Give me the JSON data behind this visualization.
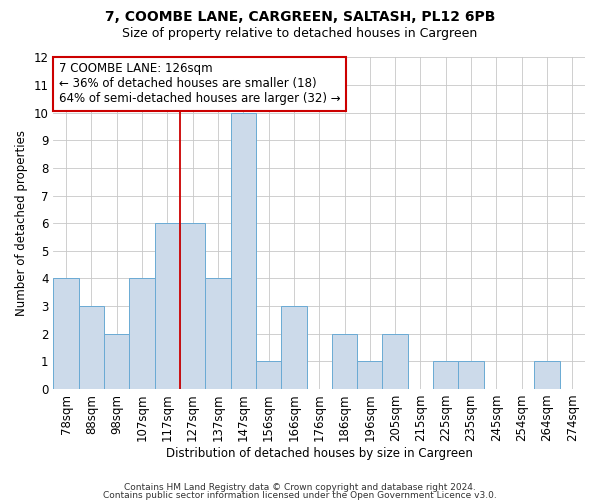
{
  "title1": "7, COOMBE LANE, CARGREEN, SALTASH, PL12 6PB",
  "title2": "Size of property relative to detached houses in Cargreen",
  "xlabel": "Distribution of detached houses by size in Cargreen",
  "ylabel": "Number of detached properties",
  "categories": [
    "78sqm",
    "88sqm",
    "98sqm",
    "107sqm",
    "117sqm",
    "127sqm",
    "137sqm",
    "147sqm",
    "156sqm",
    "166sqm",
    "176sqm",
    "186sqm",
    "196sqm",
    "205sqm",
    "215sqm",
    "225sqm",
    "235sqm",
    "245sqm",
    "254sqm",
    "264sqm",
    "274sqm"
  ],
  "values": [
    4,
    3,
    2,
    4,
    6,
    6,
    4,
    10,
    1,
    3,
    0,
    2,
    1,
    2,
    0,
    1,
    1,
    0,
    0,
    1,
    0
  ],
  "bar_color": "#ccdaea",
  "bar_edge_color": "#6aaad4",
  "vline_x_index": 5,
  "vline_color": "#cc0000",
  "annotation_line1": "7 COOMBE LANE: 126sqm",
  "annotation_line2": "← 36% of detached houses are smaller (18)",
  "annotation_line3": "64% of semi-detached houses are larger (32) →",
  "annotation_box_color": "#ffffff",
  "annotation_box_edge": "#cc0000",
  "ylim": [
    0,
    12
  ],
  "yticks": [
    0,
    1,
    2,
    3,
    4,
    5,
    6,
    7,
    8,
    9,
    10,
    11,
    12
  ],
  "footer1": "Contains HM Land Registry data © Crown copyright and database right 2024.",
  "footer2": "Contains public sector information licensed under the Open Government Licence v3.0.",
  "background_color": "#ffffff",
  "grid_color": "#c8c8c8",
  "title1_fontsize": 10,
  "title2_fontsize": 9,
  "annotation_fontsize": 8.5,
  "xlabel_fontsize": 8.5,
  "ylabel_fontsize": 8.5,
  "tick_fontsize": 8.5
}
